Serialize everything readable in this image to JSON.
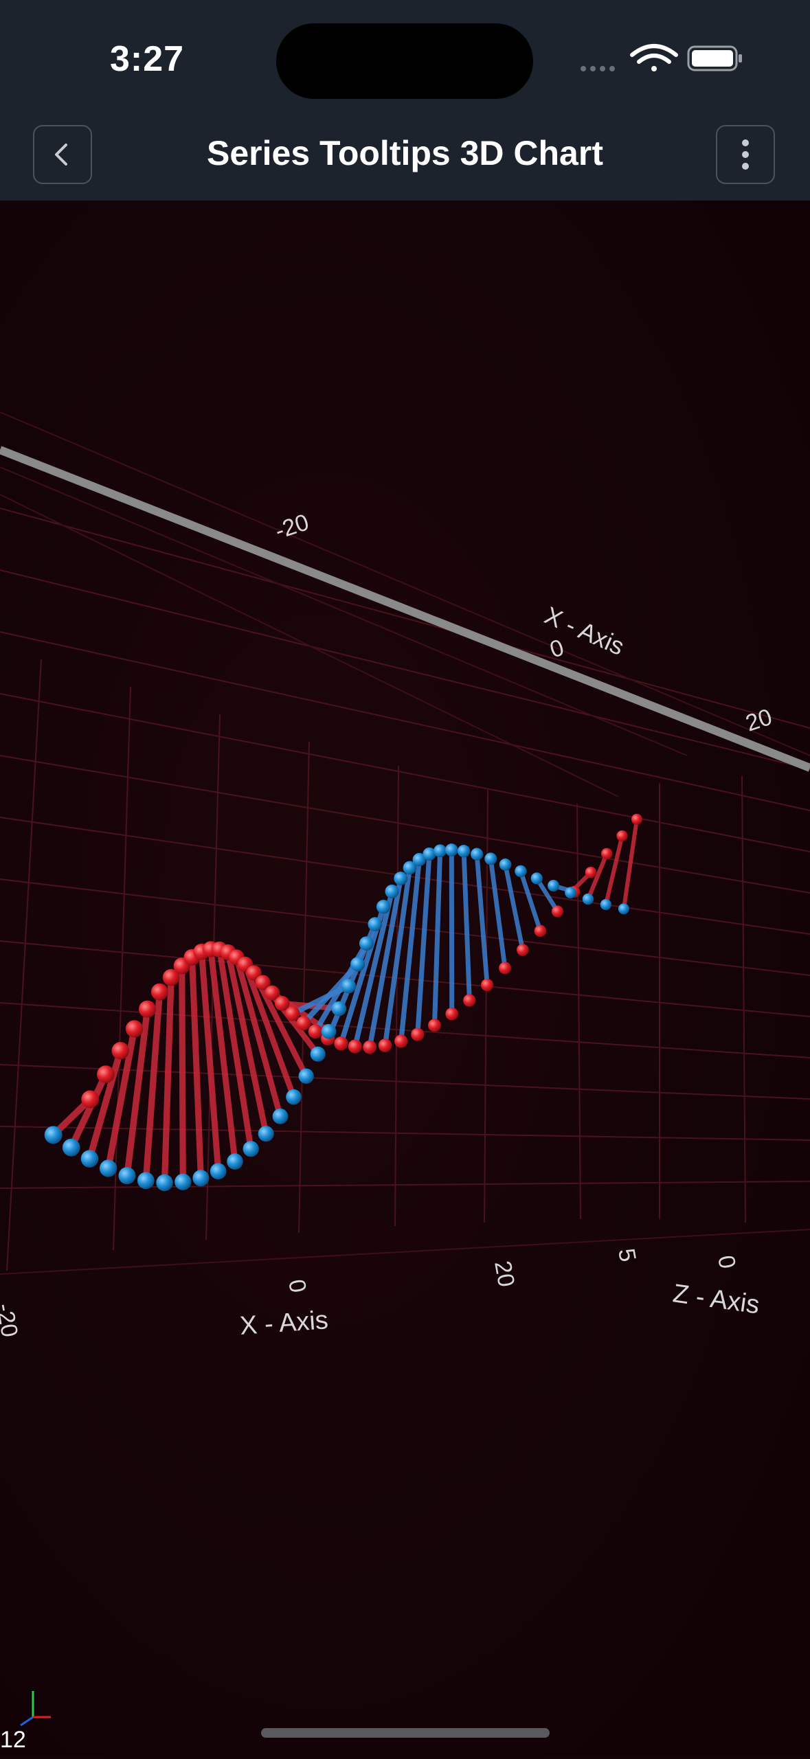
{
  "status_bar": {
    "time": "3:27"
  },
  "nav": {
    "title": "Series Tooltips 3D Chart",
    "back_icon": "chevron-left-icon",
    "menu_icon": "more-vertical-icon"
  },
  "colors": {
    "background": "#140307",
    "header": "#1c232c",
    "series_red": "#e8202a",
    "series_blue": "#1f8fd6",
    "grid": "#5c1a24",
    "axis_label": "#d8d8d8"
  },
  "chart_data": {
    "type": "scatter",
    "dimensions": 3,
    "x_axis": {
      "label": "X - Axis",
      "ticks": [
        "-20",
        "0",
        "20"
      ]
    },
    "z_axis": {
      "label": "Z - Axis",
      "ticks": [
        "0",
        "5"
      ]
    },
    "back_x_axis": {
      "label": "X - Axis",
      "ticks": [
        "-20",
        "0",
        "20"
      ]
    },
    "description_series": [
      "red",
      "blue"
    ],
    "grid": true,
    "points_per_series": 42
  },
  "overlay": {
    "fps": "12"
  }
}
